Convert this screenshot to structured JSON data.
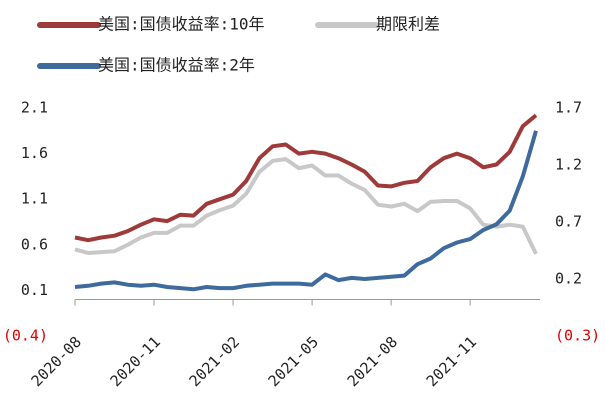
{
  "chart_data": {
    "type": "line",
    "categories": [
      "2020-08",
      null,
      null,
      null,
      null,
      null,
      "2020-11",
      null,
      null,
      null,
      null,
      null,
      "2021-02",
      null,
      null,
      null,
      null,
      null,
      "2021-05",
      null,
      null,
      null,
      null,
      null,
      "2021-08",
      null,
      null,
      null,
      null,
      null,
      "2021-11",
      null,
      null,
      null,
      null,
      null
    ],
    "series": [
      {
        "name": "美国:国债收益率:10年",
        "color": "#9e3a3a",
        "values": [
          0.68,
          0.65,
          0.68,
          0.7,
          0.75,
          0.82,
          0.88,
          0.86,
          0.93,
          0.92,
          1.05,
          1.1,
          1.15,
          1.3,
          1.55,
          1.68,
          1.7,
          1.6,
          1.62,
          1.6,
          1.55,
          1.48,
          1.4,
          1.25,
          1.24,
          1.28,
          1.3,
          1.45,
          1.55,
          1.6,
          1.55,
          1.45,
          1.48,
          1.62,
          1.9,
          2.02
        ]
      },
      {
        "name": "期限利差",
        "color": "#c8c8c8",
        "values": [
          0.55,
          0.51,
          0.52,
          0.53,
          0.6,
          0.68,
          0.73,
          0.73,
          0.81,
          0.81,
          0.92,
          0.98,
          1.03,
          1.16,
          1.4,
          1.52,
          1.54,
          1.44,
          1.47,
          1.36,
          1.36,
          1.27,
          1.2,
          1.04,
          1.02,
          1.05,
          0.97,
          1.07,
          1.08,
          1.08,
          1.0,
          0.82,
          0.8,
          0.82,
          0.8,
          0.5
        ]
      },
      {
        "name": "美国:国债收益率:2年",
        "color": "#3e6a9e",
        "axis": "y2",
        "values": [
          0.13,
          0.14,
          0.16,
          0.17,
          0.15,
          0.14,
          0.15,
          0.13,
          0.12,
          0.11,
          0.13,
          0.12,
          0.12,
          0.14,
          0.15,
          0.16,
          0.16,
          0.16,
          0.15,
          0.24,
          0.19,
          0.21,
          0.2,
          0.21,
          0.22,
          0.23,
          0.33,
          0.38,
          0.47,
          0.52,
          0.55,
          0.63,
          0.68,
          0.8,
          1.1,
          1.5
        ]
      }
    ],
    "ylim": [
      -0.4,
      2.1
    ],
    "yticks": [
      2.1,
      1.6,
      1.1,
      0.6,
      0.1,
      {
        "value": -0.4,
        "label": "(0.4)"
      }
    ],
    "y2lim": [
      -0.3,
      1.7
    ],
    "y2ticks": [
      1.7,
      1.2,
      0.7,
      0.2,
      {
        "value": -0.3,
        "label": "(0.3)"
      }
    ],
    "legend": "top-left"
  }
}
